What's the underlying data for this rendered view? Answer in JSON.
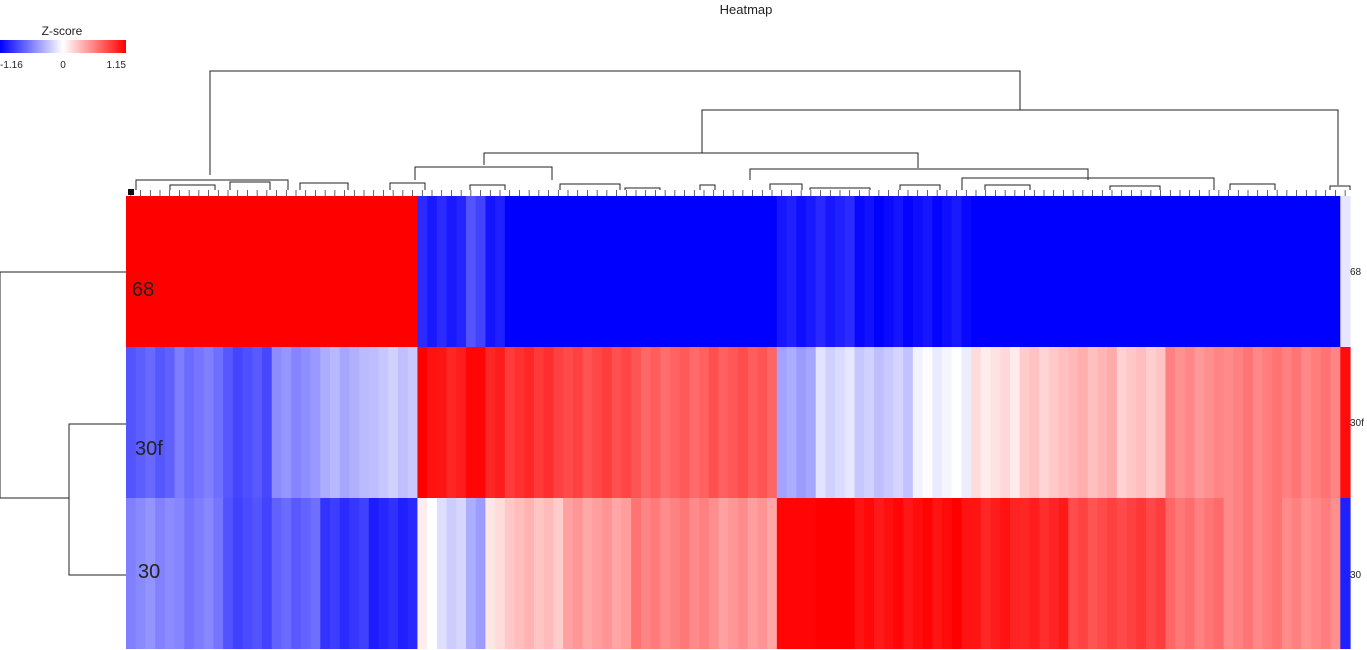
{
  "chart_data": {
    "type": "heatmap",
    "title": "Heatmap",
    "rows": [
      "68",
      "30f",
      "30"
    ],
    "row_tick_labels": [
      "68",
      "30f",
      "30"
    ],
    "colorbar": {
      "title": "Z-score",
      "min": -1.16,
      "mid": 0,
      "max": 1.15,
      "tick_labels": [
        "-1.16",
        "0",
        "1.15"
      ],
      "low_color": "#0000ff",
      "mid_color": "#ffffff",
      "high_color": "#ff0000"
    },
    "column_groups": [
      {
        "count": 5,
        "values": [
          1.0,
          -0.62,
          -0.45
        ]
      },
      {
        "count": 5,
        "values": [
          1.0,
          -0.55,
          -0.52
        ]
      },
      {
        "count": 5,
        "values": [
          1.0,
          -0.68,
          -0.7
        ]
      },
      {
        "count": 5,
        "values": [
          1.0,
          -0.45,
          -0.62
        ]
      },
      {
        "count": 5,
        "values": [
          1.0,
          -0.3,
          -0.78
        ]
      },
      {
        "count": 5,
        "values": [
          1.0,
          -0.22,
          -0.85
        ]
      },
      {
        "count": 2,
        "values": [
          -0.88,
          0.95,
          0.02
        ]
      },
      {
        "count": 3,
        "values": [
          -0.85,
          0.9,
          -0.15
        ]
      },
      {
        "count": 2,
        "values": [
          -0.7,
          0.98,
          -0.35
        ]
      },
      {
        "count": 2,
        "values": [
          -0.92,
          0.85,
          0.1
        ]
      },
      {
        "count": 6,
        "values": [
          -1.0,
          0.8,
          0.25
        ]
      },
      {
        "count": 7,
        "values": [
          -1.0,
          0.72,
          0.38
        ]
      },
      {
        "count": 8,
        "values": [
          -1.0,
          0.62,
          0.5
        ]
      },
      {
        "count": 7,
        "values": [
          -1.0,
          0.65,
          0.4
        ]
      },
      {
        "count": 4,
        "values": [
          -0.9,
          -0.35,
          0.98
        ]
      },
      {
        "count": 4,
        "values": [
          -0.88,
          -0.15,
          1.0
        ]
      },
      {
        "count": 6,
        "values": [
          -0.95,
          -0.2,
          0.95
        ]
      },
      {
        "count": 6,
        "values": [
          -0.95,
          -0.05,
          0.95
        ]
      },
      {
        "count": 5,
        "values": [
          -1.0,
          0.12,
          0.9
        ]
      },
      {
        "count": 5,
        "values": [
          -1.0,
          0.2,
          0.85
        ]
      },
      {
        "count": 5,
        "values": [
          -1.0,
          0.3,
          0.72
        ]
      },
      {
        "count": 5,
        "values": [
          -1.0,
          0.22,
          0.75
        ]
      },
      {
        "count": 6,
        "values": [
          -1.0,
          0.45,
          0.55
        ]
      },
      {
        "count": 6,
        "values": [
          -1.0,
          0.5,
          0.5
        ]
      },
      {
        "count": 6,
        "values": [
          -1.0,
          0.52,
          0.48
        ]
      },
      {
        "count": 1,
        "values": [
          -0.1,
          0.95,
          -0.88
        ]
      }
    ]
  }
}
